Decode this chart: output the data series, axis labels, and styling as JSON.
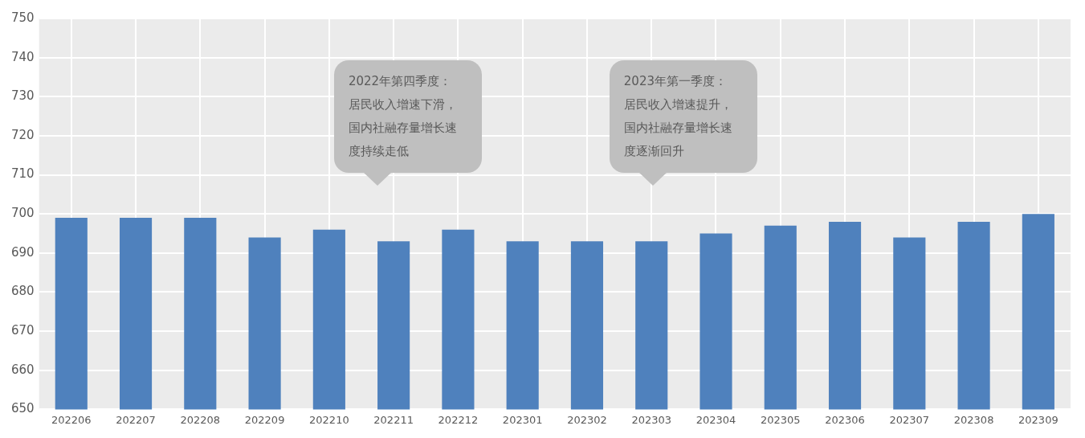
{
  "chart_data": {
    "type": "bar",
    "categories": [
      "202206",
      "202207",
      "202208",
      "202209",
      "202210",
      "202211",
      "202212",
      "202301",
      "202302",
      "202303",
      "202304",
      "202305",
      "202306",
      "202307",
      "202308",
      "202309"
    ],
    "values": [
      699,
      699,
      699,
      694,
      696,
      693,
      696,
      693,
      693,
      693,
      695,
      697,
      698,
      694,
      698,
      700
    ],
    "color": "#4f81bd",
    "ylim": [
      650,
      750
    ],
    "yticks": [
      650,
      660,
      670,
      680,
      690,
      700,
      710,
      720,
      730,
      740,
      750
    ],
    "grid": true,
    "legend": false,
    "annotations": [
      "2022年第四季度：居民收入增速下滑，国内社融存量增长速度持续走低",
      "2023年第一季度：居民收入增速提升，国内社融存量增长速度逐渐回升"
    ]
  }
}
